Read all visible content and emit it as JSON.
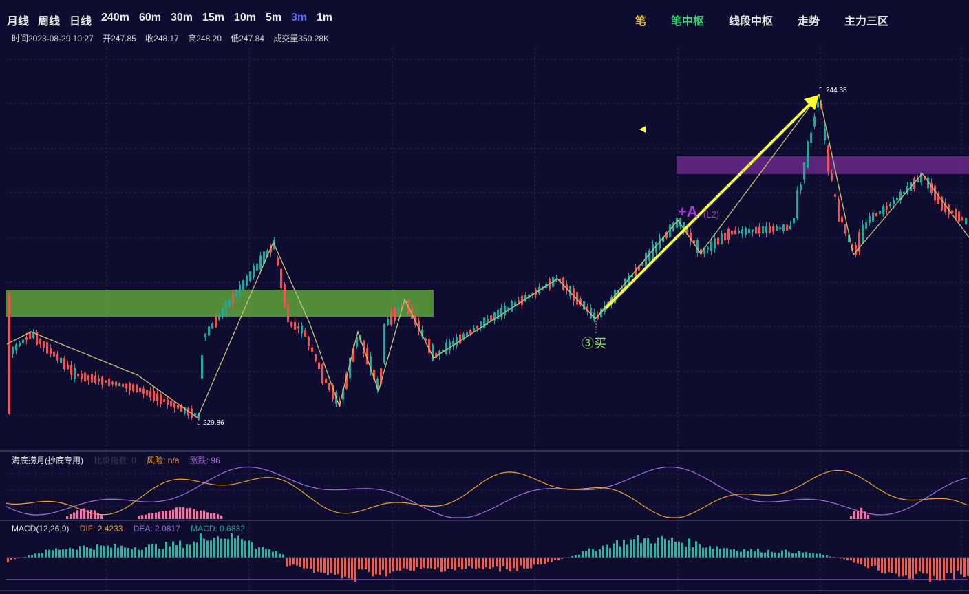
{
  "periods": [
    {
      "label": "月线",
      "active": false
    },
    {
      "label": "周线",
      "active": false
    },
    {
      "label": "日线",
      "active": false
    },
    {
      "label": "240m",
      "active": false
    },
    {
      "label": "60m",
      "active": false
    },
    {
      "label": "30m",
      "active": false
    },
    {
      "label": "15m",
      "active": false
    },
    {
      "label": "10m",
      "active": false
    },
    {
      "label": "5m",
      "active": false
    },
    {
      "label": "3m",
      "active": true
    },
    {
      "label": "1m",
      "active": false
    }
  ],
  "modes": [
    {
      "label": "笔",
      "color": "#f0c95a"
    },
    {
      "label": "笔中枢",
      "color": "#37d67a"
    },
    {
      "label": "线段中枢",
      "color": "#e9e9ea"
    },
    {
      "label": "走势",
      "color": "#e9e9ea"
    },
    {
      "label": "主力三区",
      "color": "#e9e9ea"
    }
  ],
  "ohlc": {
    "time": "时间2023-08-29 10:27",
    "open": "开247.85",
    "close": "收248.17",
    "high": "高248.20",
    "low": "低247.84",
    "volume": "成交量350.28K"
  },
  "annotations": {
    "low_label": "229.86",
    "high_label": "244.38",
    "buy_signal": "③买",
    "center_tag": "+A",
    "center_level": "(L2)"
  },
  "indicator1": {
    "name": "海底捞月(抄底专用)",
    "param1": "比价指数: 0",
    "param2": "风险: n/a",
    "param3": "涨跌: 96"
  },
  "indicator2": {
    "name": "MACD(12,26,9)",
    "dif": "DIF: 2.4233",
    "dea": "DEA: 2.0817",
    "macd": "MACD: 0.6832"
  },
  "colors": {
    "background": "#0e0c2f",
    "up": "#26a69a",
    "down": "#ef5350",
    "bi_line": "#c9c27a",
    "zone_green": "#5a9a3a",
    "zone_purple": "#6a2a8a",
    "arrow": "#ffff33",
    "dif": "#f0a030",
    "dea": "#a070e0"
  },
  "chart_data": {
    "type": "candlestick",
    "price_range": [
      229.86,
      244.38
    ],
    "pivots": [
      {
        "label": "low",
        "value": 229.86
      },
      {
        "label": "high",
        "value": 244.38
      }
    ],
    "zones": [
      {
        "name": "green-center",
        "range": [
          234.4,
          235.6
        ]
      },
      {
        "name": "purple-center",
        "range": [
          240.8,
          241.6
        ]
      }
    ]
  }
}
